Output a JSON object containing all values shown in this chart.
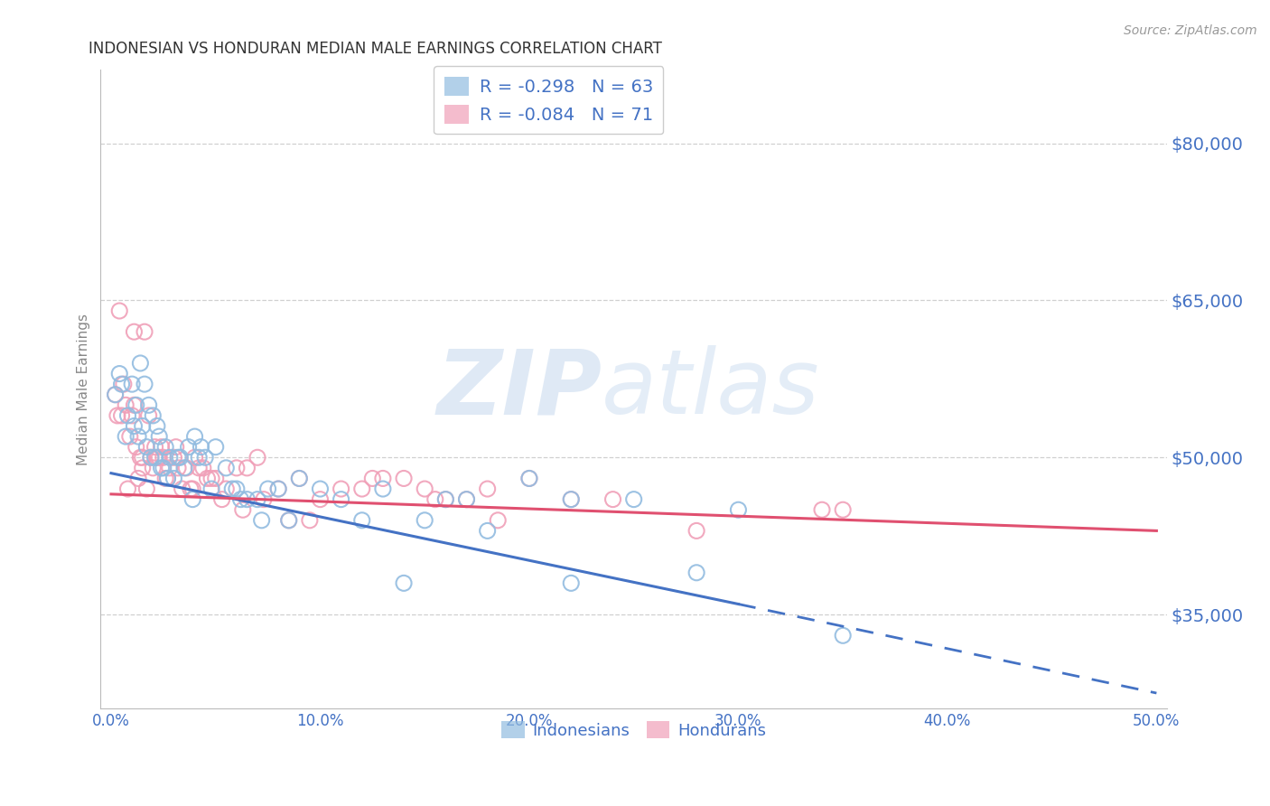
{
  "title": "INDONESIAN VS HONDURAN MEDIAN MALE EARNINGS CORRELATION CHART",
  "source": "Source: ZipAtlas.com",
  "ylabel": "Median Male Earnings",
  "xlabel_ticks": [
    "0.0%",
    "10.0%",
    "20.0%",
    "30.0%",
    "40.0%",
    "50.0%"
  ],
  "xlabel_vals": [
    0.0,
    10.0,
    20.0,
    30.0,
    40.0,
    50.0
  ],
  "ytick_vals": [
    35000,
    50000,
    65000,
    80000
  ],
  "ytick_labels": [
    "$35,000",
    "$50,000",
    "$65,000",
    "$80,000"
  ],
  "xlim": [
    -0.5,
    50.5
  ],
  "ylim": [
    26000,
    87000
  ],
  "watermark_zip": "ZIP",
  "watermark_atlas": "atlas",
  "legend_label1": "R = -0.298   N = 63",
  "legend_label2": "R = -0.084   N = 71",
  "legend_bottom": [
    "Indonesians",
    "Hondurans"
  ],
  "indonesian_color": "#92bce0",
  "honduran_color": "#f0a0b8",
  "indonesian_line_color": "#4472c4",
  "honduran_line_color": "#e05070",
  "grid_color": "#d0d0d0",
  "background_color": "#ffffff",
  "title_color": "#333333",
  "axis_label_color": "#4472c4",
  "indonesians_x": [
    0.2,
    0.4,
    0.5,
    0.7,
    0.8,
    1.0,
    1.1,
    1.2,
    1.3,
    1.5,
    1.6,
    1.7,
    1.8,
    1.9,
    2.0,
    2.1,
    2.2,
    2.3,
    2.4,
    2.5,
    2.6,
    2.8,
    3.0,
    3.2,
    3.5,
    3.7,
    4.0,
    4.2,
    4.5,
    5.0,
    5.5,
    5.8,
    6.0,
    6.5,
    7.0,
    7.5,
    8.0,
    9.0,
    10.0,
    11.0,
    12.0,
    13.0,
    14.0,
    15.0,
    16.0,
    17.0,
    18.0,
    20.0,
    22.0,
    25.0,
    28.0,
    30.0,
    35.0,
    2.7,
    3.3,
    3.9,
    4.3,
    4.8,
    6.2,
    7.2,
    8.5,
    1.4,
    22.0
  ],
  "indonesians_y": [
    56000,
    58000,
    57000,
    52000,
    54000,
    57000,
    53000,
    55000,
    52000,
    53000,
    57000,
    51000,
    55000,
    50000,
    54000,
    50000,
    53000,
    52000,
    49000,
    49000,
    51000,
    50000,
    48000,
    50000,
    49000,
    51000,
    52000,
    50000,
    50000,
    51000,
    49000,
    47000,
    47000,
    46000,
    46000,
    47000,
    47000,
    48000,
    47000,
    46000,
    44000,
    47000,
    38000,
    44000,
    46000,
    46000,
    43000,
    48000,
    38000,
    46000,
    39000,
    45000,
    33000,
    48000,
    50000,
    46000,
    51000,
    47000,
    46000,
    44000,
    44000,
    59000,
    46000
  ],
  "hondurans_x": [
    0.2,
    0.3,
    0.5,
    0.6,
    0.7,
    0.9,
    1.0,
    1.1,
    1.2,
    1.3,
    1.4,
    1.5,
    1.6,
    1.7,
    1.8,
    1.9,
    2.0,
    2.1,
    2.2,
    2.3,
    2.4,
    2.5,
    2.6,
    2.8,
    3.0,
    3.2,
    3.4,
    3.6,
    3.8,
    4.0,
    4.2,
    4.4,
    4.6,
    5.0,
    5.5,
    6.0,
    6.5,
    7.0,
    8.0,
    9.0,
    10.0,
    11.0,
    12.0,
    13.0,
    14.0,
    15.0,
    16.0,
    17.0,
    18.0,
    20.0,
    22.0,
    24.0,
    28.0,
    35.0,
    1.5,
    2.7,
    3.1,
    3.9,
    4.8,
    5.3,
    6.3,
    7.3,
    8.5,
    9.5,
    12.5,
    15.5,
    18.5,
    0.4,
    34.0,
    0.8,
    1.1
  ],
  "hondurans_y": [
    56000,
    54000,
    54000,
    57000,
    55000,
    52000,
    54000,
    55000,
    51000,
    48000,
    50000,
    49000,
    62000,
    47000,
    54000,
    50000,
    49000,
    51000,
    50000,
    50000,
    51000,
    50000,
    48000,
    49000,
    50000,
    49000,
    47000,
    49000,
    47000,
    50000,
    49000,
    49000,
    48000,
    48000,
    47000,
    49000,
    49000,
    50000,
    47000,
    48000,
    46000,
    47000,
    47000,
    48000,
    48000,
    47000,
    46000,
    46000,
    47000,
    48000,
    46000,
    46000,
    43000,
    45000,
    50000,
    48000,
    51000,
    47000,
    48000,
    46000,
    45000,
    46000,
    44000,
    44000,
    48000,
    46000,
    44000,
    64000,
    45000,
    47000,
    62000
  ],
  "indo_line_x0": 0.0,
  "indo_line_y0": 48500,
  "indo_line_x1": 30.0,
  "indo_line_y1": 36000,
  "indo_dash_x1": 50.0,
  "indo_dash_y1": 27500,
  "hon_line_y0": 46500,
  "hon_line_y1": 43000
}
